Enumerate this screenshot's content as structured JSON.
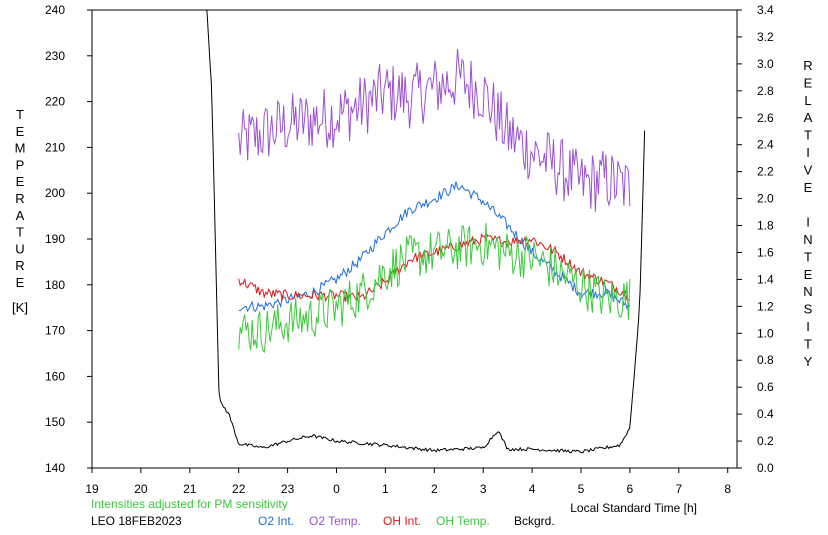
{
  "chart_data": {
    "type": "line",
    "left_axis": {
      "label": "TEMPERATURE",
      "unit": "[K]",
      "range": [
        140,
        240
      ],
      "ticks": [
        140,
        150,
        160,
        170,
        180,
        190,
        200,
        210,
        220,
        230,
        240
      ]
    },
    "right_axis": {
      "label": "RELATIVE INTENSITY",
      "range": [
        0,
        3.4
      ],
      "ticks": [
        "0.0",
        "0.2",
        "0.4",
        "0.6",
        "0.8",
        "1.0",
        "1.2",
        "1.4",
        "1.6",
        "1.8",
        "2.0",
        "2.2",
        "2.4",
        "2.6",
        "2.8",
        "3.0",
        "3.2",
        "3.4"
      ]
    },
    "x_axis": {
      "label": "Local Standard Time [h]",
      "tick_labels": [
        "19",
        "20",
        "21",
        "22",
        "23",
        "0",
        "1",
        "2",
        "3",
        "4",
        "5",
        "6",
        "7",
        "8"
      ]
    },
    "note": "Intensities adjusted for PM sensitivity",
    "station": "LEO 18FEB2023",
    "legend": [
      {
        "name": "O2 Int.",
        "color": "#1f6fd6"
      },
      {
        "name": "O2 Temp.",
        "color": "#9b50d0"
      },
      {
        "name": "OH Int.",
        "color": "#d61a1a"
      },
      {
        "name": "OH Temp.",
        "color": "#3cc83c"
      },
      {
        "name": "Bckgrd.",
        "color": "#000000"
      }
    ],
    "series": [
      {
        "name": "O2 Temp.",
        "axis": "left",
        "noise": 7,
        "x": [
          22.0,
          22.5,
          23.0,
          23.5,
          24.0,
          24.5,
          25.0,
          25.5,
          26.0,
          26.5,
          27.0,
          27.5,
          28.0,
          28.5,
          29.0,
          29.5,
          30.0
        ],
        "y": [
          211,
          213,
          215,
          216,
          217,
          219,
          222,
          221,
          223,
          225,
          222,
          213,
          209,
          206,
          202,
          203,
          201
        ]
      },
      {
        "name": "O2 Int.",
        "axis": "right",
        "noise": 0.04,
        "x": [
          22.0,
          22.5,
          23.0,
          23.5,
          24.0,
          24.5,
          25.0,
          25.5,
          26.0,
          26.5,
          27.0,
          27.5,
          28.0,
          28.5,
          29.0,
          29.5,
          30.0
        ],
        "y": [
          1.2,
          1.2,
          1.25,
          1.3,
          1.4,
          1.55,
          1.75,
          1.92,
          2.0,
          2.1,
          1.98,
          1.8,
          1.6,
          1.45,
          1.3,
          1.3,
          1.2
        ]
      },
      {
        "name": "OH Int.",
        "axis": "right",
        "noise": 0.04,
        "x": [
          22.0,
          22.5,
          23.0,
          23.5,
          24.0,
          24.5,
          25.0,
          25.5,
          26.0,
          26.5,
          27.0,
          27.5,
          28.0,
          28.5,
          29.0,
          29.5,
          30.0
        ],
        "y": [
          1.4,
          1.3,
          1.28,
          1.28,
          1.28,
          1.26,
          1.38,
          1.55,
          1.6,
          1.65,
          1.7,
          1.68,
          1.7,
          1.6,
          1.45,
          1.38,
          1.28
        ]
      },
      {
        "name": "OH Temp.",
        "axis": "left",
        "noise": 5,
        "x": [
          22.0,
          22.5,
          23.0,
          23.5,
          24.0,
          24.5,
          25.0,
          25.5,
          26.0,
          26.5,
          27.0,
          27.5,
          28.0,
          28.5,
          29.0,
          29.5,
          30.0
        ],
        "y": [
          170,
          170,
          172,
          173,
          175,
          178,
          183,
          186,
          187,
          188,
          189,
          187,
          186,
          183,
          180,
          177,
          177
        ]
      },
      {
        "name": "Bckgrd.",
        "axis": "right",
        "noise": 0.012,
        "x": [
          21.35,
          21.45,
          21.6,
          21.8,
          22.0,
          22.5,
          23.0,
          23.5,
          24.0,
          25.0,
          26.0,
          27.0,
          27.3,
          27.5,
          28.0,
          29.0,
          29.5,
          29.8,
          30.0,
          30.2,
          30.3
        ],
        "y": [
          3.4,
          2.8,
          0.5,
          0.4,
          0.18,
          0.15,
          0.2,
          0.24,
          0.2,
          0.17,
          0.13,
          0.15,
          0.28,
          0.14,
          0.14,
          0.12,
          0.15,
          0.17,
          0.3,
          1.2,
          2.5
        ]
      }
    ]
  }
}
